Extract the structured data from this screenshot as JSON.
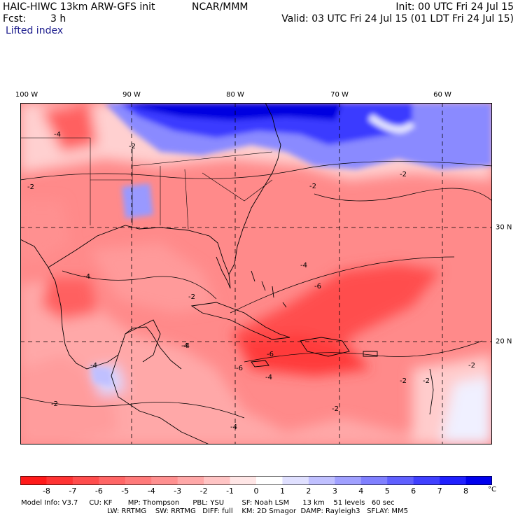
{
  "header": {
    "model": "HAIC-HIWC 13km ARW-GFS init",
    "org": "NCAR/MMM",
    "init": "Init: 00 UTC Fri 24 Jul 15",
    "fcst_label": "Fcst:",
    "fcst_value": "3 h",
    "valid": "Valid: 03 UTC Fri 24 Jul 15 (01 LDT Fri 24 Jul 15)",
    "field": "Lifted index"
  },
  "map": {
    "lon_labels": [
      "100 W",
      "90 W",
      "80 W",
      "70 W",
      "60 W"
    ],
    "lat_labels": [
      "30 N",
      "20 N"
    ],
    "contour_labels": [
      "-4",
      "-2",
      "-2",
      "-2",
      "-2",
      "-4",
      "-4",
      "-6",
      "-6",
      "-4",
      "-4",
      "-2",
      "-2",
      "-4",
      "-6",
      "-4",
      "-2",
      "-2",
      "-2",
      "-4",
      "-2"
    ]
  },
  "colorbar": {
    "labels": [
      "-8",
      "-7",
      "-6",
      "-5",
      "-4",
      "-3",
      "-2",
      "-1",
      "0",
      "1",
      "2",
      "3",
      "4",
      "5",
      "6",
      "7",
      "8"
    ],
    "unit": "°C",
    "colors": [
      "#ff1a1a",
      "#ff3333",
      "#ff4d4d",
      "#ff6666",
      "#ff7a7a",
      "#ff9090",
      "#ffa8a8",
      "#ffc4c4",
      "#ffe6e6",
      "#ffffff",
      "#e0e0ff",
      "#c0c0ff",
      "#a0a0ff",
      "#8080ff",
      "#6060ff",
      "#4040ff",
      "#2020ff",
      "#0000ee"
    ]
  },
  "footer": {
    "line1": "Model Info: V3.7     CU: KF       MP: Thompson      PBL: YSU        SF: Noah LSM      13 km    51 levels   60 sec",
    "line2": "LW: RRTMG    SW: RRTMG   DIFF: full    KM: 2D Smagor  DAMP: Rayleigh3   SFLAY: MM5"
  }
}
